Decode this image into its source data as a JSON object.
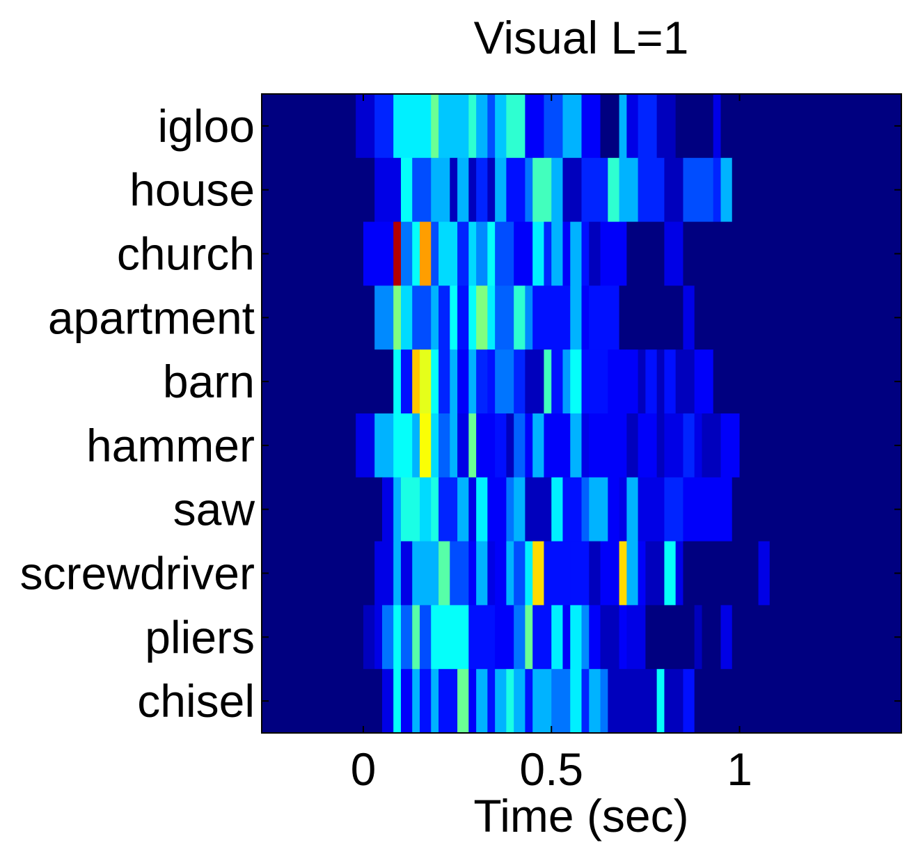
{
  "chart_data": {
    "type": "heatmap",
    "title": "Visual L=1",
    "xlabel": "Time (sec)",
    "ylabel": "",
    "xlim": [
      -0.27,
      1.43
    ],
    "x_ticks": [
      0,
      0.5,
      1
    ],
    "x_tick_labels": [
      "0",
      "0.5",
      "1"
    ],
    "colormap": "jet",
    "value_range": [
      0,
      1
    ],
    "bin_width_sec": 0.025,
    "rows": [
      "igloo",
      "house",
      "church",
      "apartment",
      "barn",
      "hammer",
      "saw",
      "screwdriver",
      "pliers",
      "chisel"
    ],
    "time_segments": [
      [
        [
          -0.27,
          0.0,
          0.0
        ],
        [
          -0.02,
          0.03,
          0.08
        ],
        [
          0.03,
          0.08,
          0.16
        ],
        [
          0.08,
          0.1,
          0.36
        ],
        [
          0.1,
          0.18,
          0.36
        ],
        [
          0.18,
          0.2,
          0.48
        ],
        [
          0.2,
          0.28,
          0.32
        ],
        [
          0.28,
          0.3,
          0.42
        ],
        [
          0.3,
          0.33,
          0.3
        ],
        [
          0.33,
          0.35,
          0.2
        ],
        [
          0.35,
          0.38,
          0.32
        ],
        [
          0.38,
          0.43,
          0.42
        ],
        [
          0.43,
          0.48,
          0.12
        ],
        [
          0.48,
          0.53,
          0.2
        ],
        [
          0.53,
          0.58,
          0.3
        ],
        [
          0.58,
          0.63,
          0.12
        ],
        [
          0.63,
          0.68,
          0.0
        ],
        [
          0.68,
          0.7,
          0.3
        ],
        [
          0.7,
          0.73,
          0.1
        ],
        [
          0.73,
          0.78,
          0.16
        ],
        [
          0.78,
          0.83,
          0.06
        ],
        [
          0.83,
          0.93,
          0.0
        ],
        [
          0.93,
          0.95,
          0.1
        ],
        [
          0.95,
          1.43,
          0.0
        ]
      ],
      [
        [
          -0.27,
          0.03,
          0.0
        ],
        [
          0.03,
          0.1,
          0.1
        ],
        [
          0.1,
          0.13,
          0.38
        ],
        [
          0.13,
          0.18,
          0.2
        ],
        [
          0.18,
          0.23,
          0.3
        ],
        [
          0.23,
          0.25,
          0.06
        ],
        [
          0.25,
          0.28,
          0.3
        ],
        [
          0.28,
          0.3,
          0.06
        ],
        [
          0.3,
          0.33,
          0.16
        ],
        [
          0.33,
          0.35,
          0.06
        ],
        [
          0.35,
          0.38,
          0.3
        ],
        [
          0.38,
          0.43,
          0.14
        ],
        [
          0.43,
          0.45,
          0.24
        ],
        [
          0.45,
          0.5,
          0.44
        ],
        [
          0.5,
          0.53,
          0.3
        ],
        [
          0.53,
          0.58,
          0.06
        ],
        [
          0.58,
          0.65,
          0.16
        ],
        [
          0.65,
          0.68,
          0.42
        ],
        [
          0.68,
          0.73,
          0.3
        ],
        [
          0.73,
          0.8,
          0.16
        ],
        [
          0.8,
          0.85,
          0.06
        ],
        [
          0.85,
          0.93,
          0.2
        ],
        [
          0.93,
          0.95,
          0.16
        ],
        [
          0.95,
          0.98,
          0.3
        ],
        [
          0.98,
          1.43,
          0.0
        ]
      ],
      [
        [
          -0.27,
          0.0,
          0.0
        ],
        [
          0.0,
          0.08,
          0.12
        ],
        [
          0.08,
          0.1,
          0.95
        ],
        [
          0.1,
          0.13,
          0.24
        ],
        [
          0.13,
          0.15,
          0.38
        ],
        [
          0.15,
          0.18,
          0.72
        ],
        [
          0.18,
          0.2,
          0.2
        ],
        [
          0.2,
          0.25,
          0.34
        ],
        [
          0.25,
          0.28,
          0.16
        ],
        [
          0.28,
          0.3,
          0.34
        ],
        [
          0.3,
          0.33,
          0.26
        ],
        [
          0.33,
          0.35,
          0.38
        ],
        [
          0.35,
          0.4,
          0.2
        ],
        [
          0.4,
          0.45,
          0.12
        ],
        [
          0.45,
          0.48,
          0.36
        ],
        [
          0.48,
          0.5,
          0.16
        ],
        [
          0.5,
          0.53,
          0.3
        ],
        [
          0.53,
          0.55,
          0.12
        ],
        [
          0.55,
          0.58,
          0.3
        ],
        [
          0.58,
          0.6,
          0.14
        ],
        [
          0.6,
          0.63,
          0.06
        ],
        [
          0.63,
          0.7,
          0.12
        ],
        [
          0.7,
          0.8,
          0.0
        ],
        [
          0.8,
          0.85,
          0.1
        ],
        [
          0.85,
          1.43,
          0.0
        ]
      ],
      [
        [
          -0.27,
          0.03,
          0.0
        ],
        [
          0.03,
          0.08,
          0.26
        ],
        [
          0.08,
          0.1,
          0.5
        ],
        [
          0.1,
          0.13,
          0.34
        ],
        [
          0.13,
          0.18,
          0.2
        ],
        [
          0.18,
          0.2,
          0.3
        ],
        [
          0.2,
          0.23,
          0.16
        ],
        [
          0.23,
          0.25,
          0.38
        ],
        [
          0.25,
          0.28,
          0.14
        ],
        [
          0.28,
          0.3,
          0.38
        ],
        [
          0.3,
          0.33,
          0.5
        ],
        [
          0.33,
          0.35,
          0.36
        ],
        [
          0.35,
          0.4,
          0.22
        ],
        [
          0.4,
          0.43,
          0.42
        ],
        [
          0.43,
          0.45,
          0.26
        ],
        [
          0.45,
          0.55,
          0.14
        ],
        [
          0.55,
          0.58,
          0.3
        ],
        [
          0.58,
          0.6,
          0.12
        ],
        [
          0.6,
          0.68,
          0.14
        ],
        [
          0.68,
          0.85,
          0.0
        ],
        [
          0.85,
          0.88,
          0.1
        ],
        [
          0.88,
          1.43,
          0.0
        ]
      ],
      [
        [
          -0.27,
          0.08,
          0.0
        ],
        [
          0.08,
          0.1,
          0.38
        ],
        [
          0.1,
          0.13,
          0.14
        ],
        [
          0.13,
          0.15,
          0.68
        ],
        [
          0.15,
          0.18,
          0.6
        ],
        [
          0.18,
          0.2,
          0.38
        ],
        [
          0.2,
          0.23,
          0.16
        ],
        [
          0.23,
          0.25,
          0.3
        ],
        [
          0.25,
          0.28,
          0.12
        ],
        [
          0.28,
          0.3,
          0.3
        ],
        [
          0.3,
          0.33,
          0.16
        ],
        [
          0.33,
          0.35,
          0.14
        ],
        [
          0.35,
          0.4,
          0.24
        ],
        [
          0.4,
          0.43,
          0.16
        ],
        [
          0.43,
          0.48,
          0.06
        ],
        [
          0.48,
          0.5,
          0.44
        ],
        [
          0.5,
          0.53,
          0.14
        ],
        [
          0.53,
          0.55,
          0.28
        ],
        [
          0.55,
          0.58,
          0.38
        ],
        [
          0.58,
          0.65,
          0.14
        ],
        [
          0.65,
          0.7,
          0.12
        ],
        [
          0.7,
          0.73,
          0.12
        ],
        [
          0.73,
          0.75,
          0.06
        ],
        [
          0.75,
          0.78,
          0.14
        ],
        [
          0.78,
          0.8,
          0.06
        ],
        [
          0.8,
          0.83,
          0.14
        ],
        [
          0.83,
          0.88,
          0.06
        ],
        [
          0.88,
          0.93,
          0.12
        ],
        [
          0.93,
          1.43,
          0.0
        ]
      ],
      [
        [
          -0.27,
          -0.02,
          0.0
        ],
        [
          -0.02,
          0.03,
          0.1
        ],
        [
          0.03,
          0.08,
          0.3
        ],
        [
          0.08,
          0.13,
          0.38
        ],
        [
          0.13,
          0.15,
          0.3
        ],
        [
          0.15,
          0.18,
          0.62
        ],
        [
          0.18,
          0.2,
          0.34
        ],
        [
          0.2,
          0.23,
          0.22
        ],
        [
          0.23,
          0.25,
          0.3
        ],
        [
          0.25,
          0.28,
          0.1
        ],
        [
          0.28,
          0.3,
          0.48
        ],
        [
          0.3,
          0.35,
          0.12
        ],
        [
          0.35,
          0.38,
          0.14
        ],
        [
          0.38,
          0.4,
          0.06
        ],
        [
          0.4,
          0.43,
          0.22
        ],
        [
          0.43,
          0.45,
          0.12
        ],
        [
          0.45,
          0.48,
          0.3
        ],
        [
          0.48,
          0.55,
          0.12
        ],
        [
          0.55,
          0.58,
          0.3
        ],
        [
          0.58,
          0.6,
          0.1
        ],
        [
          0.6,
          0.65,
          0.12
        ],
        [
          0.65,
          0.7,
          0.12
        ],
        [
          0.7,
          0.73,
          0.06
        ],
        [
          0.73,
          0.78,
          0.12
        ],
        [
          0.78,
          0.8,
          0.06
        ],
        [
          0.8,
          0.85,
          0.1
        ],
        [
          0.85,
          0.88,
          0.16
        ],
        [
          0.88,
          0.9,
          0.1
        ],
        [
          0.9,
          0.95,
          0.06
        ],
        [
          0.95,
          1.0,
          0.12
        ],
        [
          1.0,
          1.43,
          0.0
        ]
      ],
      [
        [
          -0.27,
          0.05,
          0.0
        ],
        [
          0.05,
          0.08,
          0.1
        ],
        [
          0.08,
          0.1,
          0.3
        ],
        [
          0.1,
          0.15,
          0.4
        ],
        [
          0.15,
          0.18,
          0.34
        ],
        [
          0.18,
          0.2,
          0.4
        ],
        [
          0.2,
          0.25,
          0.16
        ],
        [
          0.25,
          0.28,
          0.3
        ],
        [
          0.28,
          0.3,
          0.1
        ],
        [
          0.3,
          0.33,
          0.36
        ],
        [
          0.33,
          0.38,
          0.12
        ],
        [
          0.38,
          0.4,
          0.24
        ],
        [
          0.4,
          0.43,
          0.3
        ],
        [
          0.43,
          0.5,
          0.06
        ],
        [
          0.5,
          0.53,
          0.36
        ],
        [
          0.53,
          0.58,
          0.14
        ],
        [
          0.58,
          0.6,
          0.22
        ],
        [
          0.6,
          0.65,
          0.3
        ],
        [
          0.65,
          0.68,
          0.12
        ],
        [
          0.68,
          0.7,
          0.1
        ],
        [
          0.7,
          0.73,
          0.3
        ],
        [
          0.73,
          0.8,
          0.1
        ],
        [
          0.8,
          0.85,
          0.16
        ],
        [
          0.85,
          0.98,
          0.12
        ],
        [
          0.98,
          1.43,
          0.0
        ]
      ],
      [
        [
          -0.27,
          0.03,
          0.0
        ],
        [
          0.03,
          0.08,
          0.1
        ],
        [
          0.08,
          0.1,
          0.3
        ],
        [
          0.1,
          0.13,
          0.1
        ],
        [
          0.13,
          0.2,
          0.3
        ],
        [
          0.2,
          0.23,
          0.46
        ],
        [
          0.23,
          0.28,
          0.2
        ],
        [
          0.28,
          0.3,
          0.12
        ],
        [
          0.3,
          0.33,
          0.3
        ],
        [
          0.33,
          0.35,
          0.1
        ],
        [
          0.35,
          0.38,
          0.12
        ],
        [
          0.38,
          0.4,
          0.3
        ],
        [
          0.4,
          0.43,
          0.2
        ],
        [
          0.43,
          0.45,
          0.36
        ],
        [
          0.45,
          0.48,
          0.66
        ],
        [
          0.48,
          0.55,
          0.14
        ],
        [
          0.55,
          0.6,
          0.14
        ],
        [
          0.6,
          0.63,
          0.06
        ],
        [
          0.63,
          0.68,
          0.12
        ],
        [
          0.68,
          0.7,
          0.66
        ],
        [
          0.7,
          0.73,
          0.3
        ],
        [
          0.73,
          0.75,
          0.12
        ],
        [
          0.75,
          0.8,
          0.06
        ],
        [
          0.8,
          0.83,
          0.38
        ],
        [
          0.83,
          0.85,
          0.1
        ],
        [
          0.85,
          1.05,
          0.0
        ],
        [
          1.05,
          1.08,
          0.1
        ],
        [
          1.08,
          1.43,
          0.0
        ]
      ],
      [
        [
          -0.27,
          0.0,
          0.0
        ],
        [
          0.0,
          0.03,
          0.06
        ],
        [
          0.03,
          0.05,
          0.1
        ],
        [
          0.05,
          0.08,
          0.24
        ],
        [
          0.08,
          0.1,
          0.38
        ],
        [
          0.1,
          0.13,
          0.22
        ],
        [
          0.13,
          0.15,
          0.46
        ],
        [
          0.15,
          0.18,
          0.2
        ],
        [
          0.18,
          0.28,
          0.38
        ],
        [
          0.28,
          0.35,
          0.14
        ],
        [
          0.35,
          0.4,
          0.12
        ],
        [
          0.4,
          0.43,
          0.24
        ],
        [
          0.43,
          0.45,
          0.48
        ],
        [
          0.45,
          0.5,
          0.14
        ],
        [
          0.5,
          0.53,
          0.36
        ],
        [
          0.53,
          0.55,
          0.12
        ],
        [
          0.55,
          0.58,
          0.36
        ],
        [
          0.58,
          0.6,
          0.26
        ],
        [
          0.6,
          0.63,
          0.12
        ],
        [
          0.63,
          0.68,
          0.06
        ],
        [
          0.68,
          0.7,
          0.12
        ],
        [
          0.7,
          0.75,
          0.1
        ],
        [
          0.75,
          0.88,
          0.0
        ],
        [
          0.88,
          0.9,
          0.06
        ],
        [
          0.9,
          0.95,
          0.0
        ],
        [
          0.95,
          0.98,
          0.1
        ],
        [
          0.98,
          1.43,
          0.0
        ]
      ],
      [
        [
          -0.27,
          0.05,
          0.0
        ],
        [
          0.05,
          0.08,
          0.1
        ],
        [
          0.08,
          0.1,
          0.38
        ],
        [
          0.1,
          0.13,
          0.12
        ],
        [
          0.13,
          0.15,
          0.3
        ],
        [
          0.15,
          0.18,
          0.14
        ],
        [
          0.18,
          0.2,
          0.3
        ],
        [
          0.2,
          0.25,
          0.14
        ],
        [
          0.25,
          0.28,
          0.48
        ],
        [
          0.28,
          0.3,
          0.12
        ],
        [
          0.3,
          0.33,
          0.3
        ],
        [
          0.33,
          0.35,
          0.14
        ],
        [
          0.35,
          0.38,
          0.3
        ],
        [
          0.38,
          0.4,
          0.4
        ],
        [
          0.4,
          0.43,
          0.3
        ],
        [
          0.43,
          0.45,
          0.14
        ],
        [
          0.45,
          0.5,
          0.3
        ],
        [
          0.5,
          0.55,
          0.24
        ],
        [
          0.55,
          0.58,
          0.36
        ],
        [
          0.58,
          0.6,
          0.16
        ],
        [
          0.6,
          0.63,
          0.3
        ],
        [
          0.63,
          0.65,
          0.24
        ],
        [
          0.65,
          0.78,
          0.06
        ],
        [
          0.78,
          0.8,
          0.38
        ],
        [
          0.8,
          0.85,
          0.06
        ],
        [
          0.85,
          0.88,
          0.14
        ],
        [
          0.88,
          1.43,
          0.0
        ]
      ]
    ]
  }
}
